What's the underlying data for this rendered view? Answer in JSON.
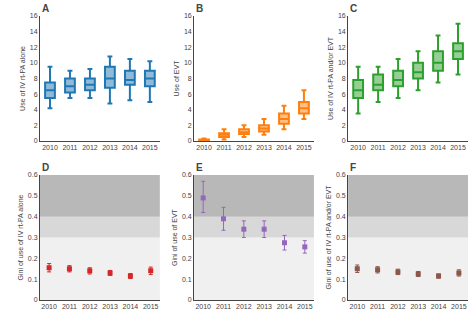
{
  "chart_data": [
    {
      "type": "box",
      "categories": [
        "2010",
        "2011",
        "2012",
        "2013",
        "2014",
        "2015"
      ],
      "whislo": [
        4.2,
        5.5,
        5.5,
        4.8,
        5.2,
        5.0
      ],
      "q1": [
        5.5,
        6.2,
        6.5,
        6.8,
        7.2,
        7.0
      ],
      "median": [
        6.5,
        7.0,
        7.2,
        8.0,
        7.8,
        8.0
      ],
      "q3": [
        7.5,
        8.0,
        8.0,
        9.5,
        9.0,
        9.0
      ],
      "whishi": [
        9.5,
        9.0,
        9.2,
        10.8,
        10.5,
        10.2
      ],
      "ylabel": "Use of IV rt-PA alone",
      "annotations": [
        "A"
      ],
      "ylim": [
        0,
        16
      ],
      "yticks": [
        0,
        2,
        4,
        6,
        8,
        10,
        12,
        14,
        16
      ],
      "grid": false
    },
    {
      "type": "box",
      "categories": [
        "2010",
        "2011",
        "2012",
        "2013",
        "2014",
        "2015"
      ],
      "whislo": [
        0.0,
        0.2,
        0.5,
        0.8,
        1.5,
        2.8
      ],
      "q1": [
        0.05,
        0.5,
        0.9,
        1.2,
        2.2,
        3.5
      ],
      "median": [
        0.1,
        0.8,
        1.1,
        1.6,
        2.8,
        4.2
      ],
      "q3": [
        0.2,
        1.0,
        1.5,
        2.0,
        3.5,
        5.0
      ],
      "whishi": [
        0.3,
        1.5,
        2.0,
        2.8,
        4.5,
        6.5
      ],
      "ylabel": "Use of EVT",
      "annotations": [
        "B"
      ],
      "ylim": [
        0,
        16
      ],
      "yticks": [
        0,
        2,
        4,
        6,
        8,
        10,
        12,
        14,
        16
      ],
      "grid": false
    },
    {
      "type": "box",
      "categories": [
        "2010",
        "2011",
        "2012",
        "2013",
        "2014",
        "2015"
      ],
      "whislo": [
        3.5,
        5.0,
        5.5,
        6.5,
        7.5,
        8.5
      ],
      "q1": [
        5.5,
        6.5,
        7.0,
        8.0,
        9.0,
        10.5
      ],
      "median": [
        6.5,
        7.2,
        7.8,
        8.8,
        10.0,
        11.5
      ],
      "q3": [
        7.8,
        8.5,
        9.0,
        10.0,
        11.5,
        12.5
      ],
      "whishi": [
        9.5,
        9.5,
        10.5,
        11.5,
        13.5,
        15.0
      ],
      "ylabel": "Use of IV rt-PA and/or EVT",
      "annotations": [
        "C"
      ],
      "ylim": [
        0,
        16
      ],
      "yticks": [
        0,
        2,
        4,
        6,
        8,
        10,
        12,
        14,
        16
      ],
      "grid": false
    },
    {
      "type": "scatter",
      "categories": [
        "2010",
        "2011",
        "2012",
        "2013",
        "2014",
        "2015"
      ],
      "values": [
        0.155,
        0.15,
        0.14,
        0.13,
        0.115,
        0.14
      ],
      "error_lo": [
        0.02,
        0.015,
        0.015,
        0.012,
        0.012,
        0.018
      ],
      "error_hi": [
        0.02,
        0.015,
        0.015,
        0.012,
        0.012,
        0.018
      ],
      "marker": "square",
      "bands": [
        {
          "lo": 0.0,
          "hi": 0.3,
          "color": "#f0f0f0"
        },
        {
          "lo": 0.3,
          "hi": 0.4,
          "color": "#d8d8d8"
        },
        {
          "lo": 0.4,
          "hi": 0.6,
          "color": "#b8b8b8"
        }
      ],
      "ylabel": "Gini of use of IV rt-PA alone",
      "annotations": [
        "D"
      ],
      "ylim": [
        0,
        0.6
      ],
      "yticks": [
        0,
        0.1,
        0.2,
        0.3,
        0.4,
        0.5,
        0.6
      ],
      "grid": false
    },
    {
      "type": "scatter",
      "categories": [
        "2010",
        "2011",
        "2012",
        "2013",
        "2014",
        "2015"
      ],
      "values": [
        0.49,
        0.39,
        0.34,
        0.34,
        0.275,
        0.255
      ],
      "error_lo": [
        0.07,
        0.055,
        0.04,
        0.04,
        0.035,
        0.03
      ],
      "error_hi": [
        0.08,
        0.055,
        0.04,
        0.04,
        0.035,
        0.03
      ],
      "marker": "square",
      "bands": [
        {
          "lo": 0.0,
          "hi": 0.3,
          "color": "#f0f0f0"
        },
        {
          "lo": 0.3,
          "hi": 0.4,
          "color": "#d8d8d8"
        },
        {
          "lo": 0.4,
          "hi": 0.6,
          "color": "#b8b8b8"
        }
      ],
      "ylabel": "Gini of use of EVT",
      "annotations": [
        "E"
      ],
      "ylim": [
        0,
        0.6
      ],
      "yticks": [
        0,
        0.1,
        0.2,
        0.3,
        0.4,
        0.5,
        0.6
      ],
      "grid": false
    },
    {
      "type": "scatter",
      "categories": [
        "2010",
        "2011",
        "2012",
        "2013",
        "2014",
        "2015"
      ],
      "values": [
        0.15,
        0.145,
        0.135,
        0.125,
        0.115,
        0.13
      ],
      "error_lo": [
        0.018,
        0.015,
        0.013,
        0.012,
        0.01,
        0.015
      ],
      "error_hi": [
        0.018,
        0.015,
        0.013,
        0.012,
        0.01,
        0.015
      ],
      "marker": "square",
      "bands": [
        {
          "lo": 0.0,
          "hi": 0.3,
          "color": "#f0f0f0"
        },
        {
          "lo": 0.3,
          "hi": 0.4,
          "color": "#d8d8d8"
        },
        {
          "lo": 0.4,
          "hi": 0.6,
          "color": "#b8b8b8"
        }
      ],
      "ylabel": "Gini of use of IV rt-PA and/or EVT",
      "annotations": [
        "F"
      ],
      "ylim": [
        0,
        0.6
      ],
      "yticks": [
        0,
        0.1,
        0.2,
        0.3,
        0.4,
        0.5,
        0.6
      ],
      "grid": false
    }
  ]
}
